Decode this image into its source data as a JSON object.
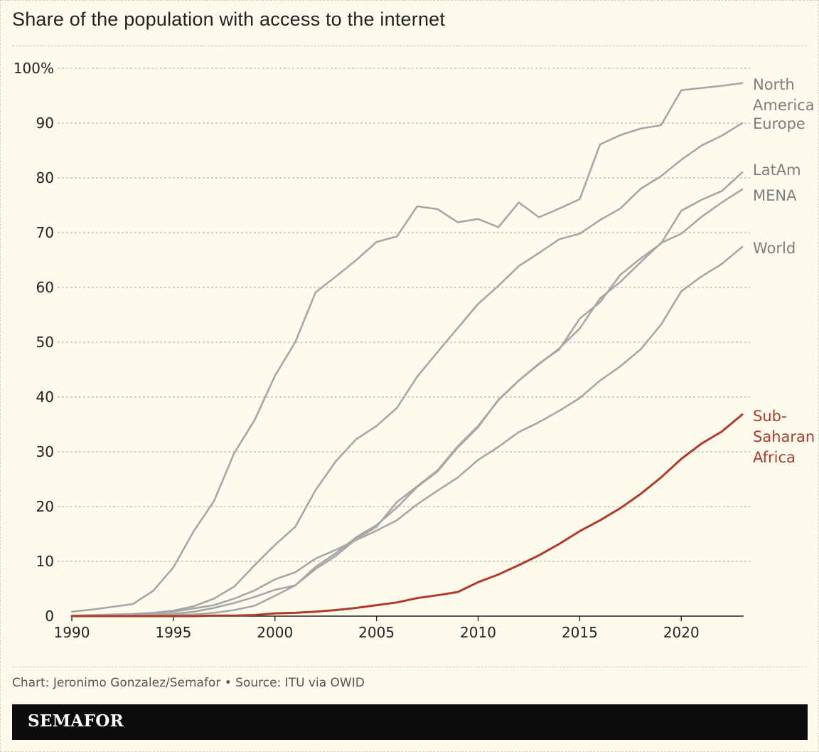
{
  "chart_data": {
    "type": "line",
    "title": "Share of the population with access to the internet",
    "xlabel": "",
    "ylabel": "",
    "x": [
      1990,
      1991,
      1992,
      1993,
      1994,
      1995,
      1996,
      1997,
      1998,
      1999,
      2000,
      2001,
      2002,
      2003,
      2004,
      2005,
      2006,
      2007,
      2008,
      2009,
      2010,
      2011,
      2012,
      2013,
      2014,
      2015,
      2016,
      2017,
      2018,
      2019,
      2020,
      2021,
      2022,
      2023
    ],
    "xlim": [
      1990,
      2023
    ],
    "ylim": [
      0,
      100
    ],
    "x_ticks": [
      1990,
      1995,
      2000,
      2005,
      2010,
      2015,
      2020
    ],
    "x_tick_labels": [
      "1990",
      "1995",
      "2000",
      "2005",
      "2010",
      "2015",
      "2020"
    ],
    "y_ticks": [
      0,
      10,
      20,
      30,
      40,
      50,
      60,
      70,
      80,
      90,
      100
    ],
    "y_tick_labels": [
      "0",
      "10",
      "20",
      "30",
      "40",
      "50",
      "60",
      "70",
      "80",
      "90",
      "100%"
    ],
    "grid": true,
    "legend": "direct labels at right end of lines",
    "series": [
      {
        "name": "North America",
        "label_lines": [
          "North",
          "America"
        ],
        "color": "#a7a7a7",
        "values": [
          0.8,
          1.2,
          1.7,
          2.2,
          4.6,
          8.9,
          15.5,
          21.0,
          29.8,
          35.8,
          43.9,
          50.0,
          59.1,
          62.0,
          65.0,
          68.3,
          69.3,
          74.8,
          74.3,
          71.9,
          72.5,
          71.0,
          75.5,
          72.8,
          74.4,
          76.1,
          86.1,
          87.8,
          89.0,
          89.6,
          96.0,
          96.4,
          96.8,
          97.3
        ]
      },
      {
        "name": "Europe",
        "label_lines": [
          "Europe"
        ],
        "color": "#a7a7a7",
        "values": [
          0.1,
          0.2,
          0.3,
          0.4,
          0.6,
          1.0,
          1.8,
          3.2,
          5.4,
          9.3,
          13.0,
          16.3,
          23.0,
          28.3,
          32.3,
          34.7,
          38.0,
          43.7,
          48.2,
          52.6,
          57.0,
          60.3,
          63.9,
          66.3,
          68.8,
          69.8,
          72.3,
          74.4,
          78.0,
          80.3,
          83.3,
          85.9,
          87.7,
          90.0
        ]
      },
      {
        "name": "LatAm",
        "label_lines": [
          "LatAm"
        ],
        "color": "#a7a7a7",
        "values": [
          0.0,
          0.0,
          0.1,
          0.1,
          0.2,
          0.4,
          0.8,
          1.5,
          2.4,
          3.5,
          4.8,
          5.6,
          8.6,
          11.0,
          14.1,
          16.3,
          20.8,
          23.7,
          26.6,
          31.0,
          34.7,
          39.4,
          43.0,
          46.1,
          48.7,
          54.3,
          57.3,
          62.3,
          65.3,
          68.0,
          74.0,
          76.0,
          77.6,
          81.0
        ]
      },
      {
        "name": "MENA",
        "label_lines": [
          "MENA"
        ],
        "color": "#a7a7a7",
        "values": [
          0.0,
          0.0,
          0.0,
          0.0,
          0.1,
          0.2,
          0.3,
          0.6,
          1.1,
          1.9,
          3.7,
          5.6,
          9.0,
          11.5,
          14.4,
          16.6,
          19.8,
          23.6,
          26.4,
          30.8,
          34.5,
          39.5,
          43.0,
          46.0,
          48.9,
          52.5,
          58.0,
          61.0,
          64.6,
          68.1,
          69.8,
          72.9,
          75.5,
          77.9
        ]
      },
      {
        "name": "World",
        "label_lines": [
          "World"
        ],
        "color": "#a7a7a7",
        "values": [
          0.0,
          0.0,
          0.1,
          0.2,
          0.4,
          0.8,
          1.4,
          2.0,
          3.2,
          4.7,
          6.7,
          8.0,
          10.5,
          12.1,
          13.9,
          15.6,
          17.5,
          20.4,
          22.9,
          25.3,
          28.5,
          30.9,
          33.6,
          35.4,
          37.5,
          39.8,
          43.0,
          45.6,
          48.7,
          53.2,
          59.3,
          62.0,
          64.3,
          67.4
        ]
      },
      {
        "name": "Sub-Saharan Africa",
        "label_lines": [
          "Sub-",
          "Saharan",
          "Africa"
        ],
        "color": "#b23a28",
        "highlight": true,
        "values": [
          0.0,
          0.0,
          0.0,
          0.0,
          0.0,
          0.0,
          0.0,
          0.1,
          0.1,
          0.2,
          0.5,
          0.6,
          0.8,
          1.1,
          1.5,
          2.0,
          2.5,
          3.3,
          3.8,
          4.4,
          6.2,
          7.6,
          9.3,
          11.1,
          13.2,
          15.5,
          17.5,
          19.7,
          22.3,
          25.3,
          28.7,
          31.5,
          33.7,
          36.8
        ]
      }
    ]
  },
  "footer": {
    "credit": "Chart: Jeronimo Gonzalez/Semafor • Source: ITU via OWID",
    "brand": "SEMAFOR"
  }
}
